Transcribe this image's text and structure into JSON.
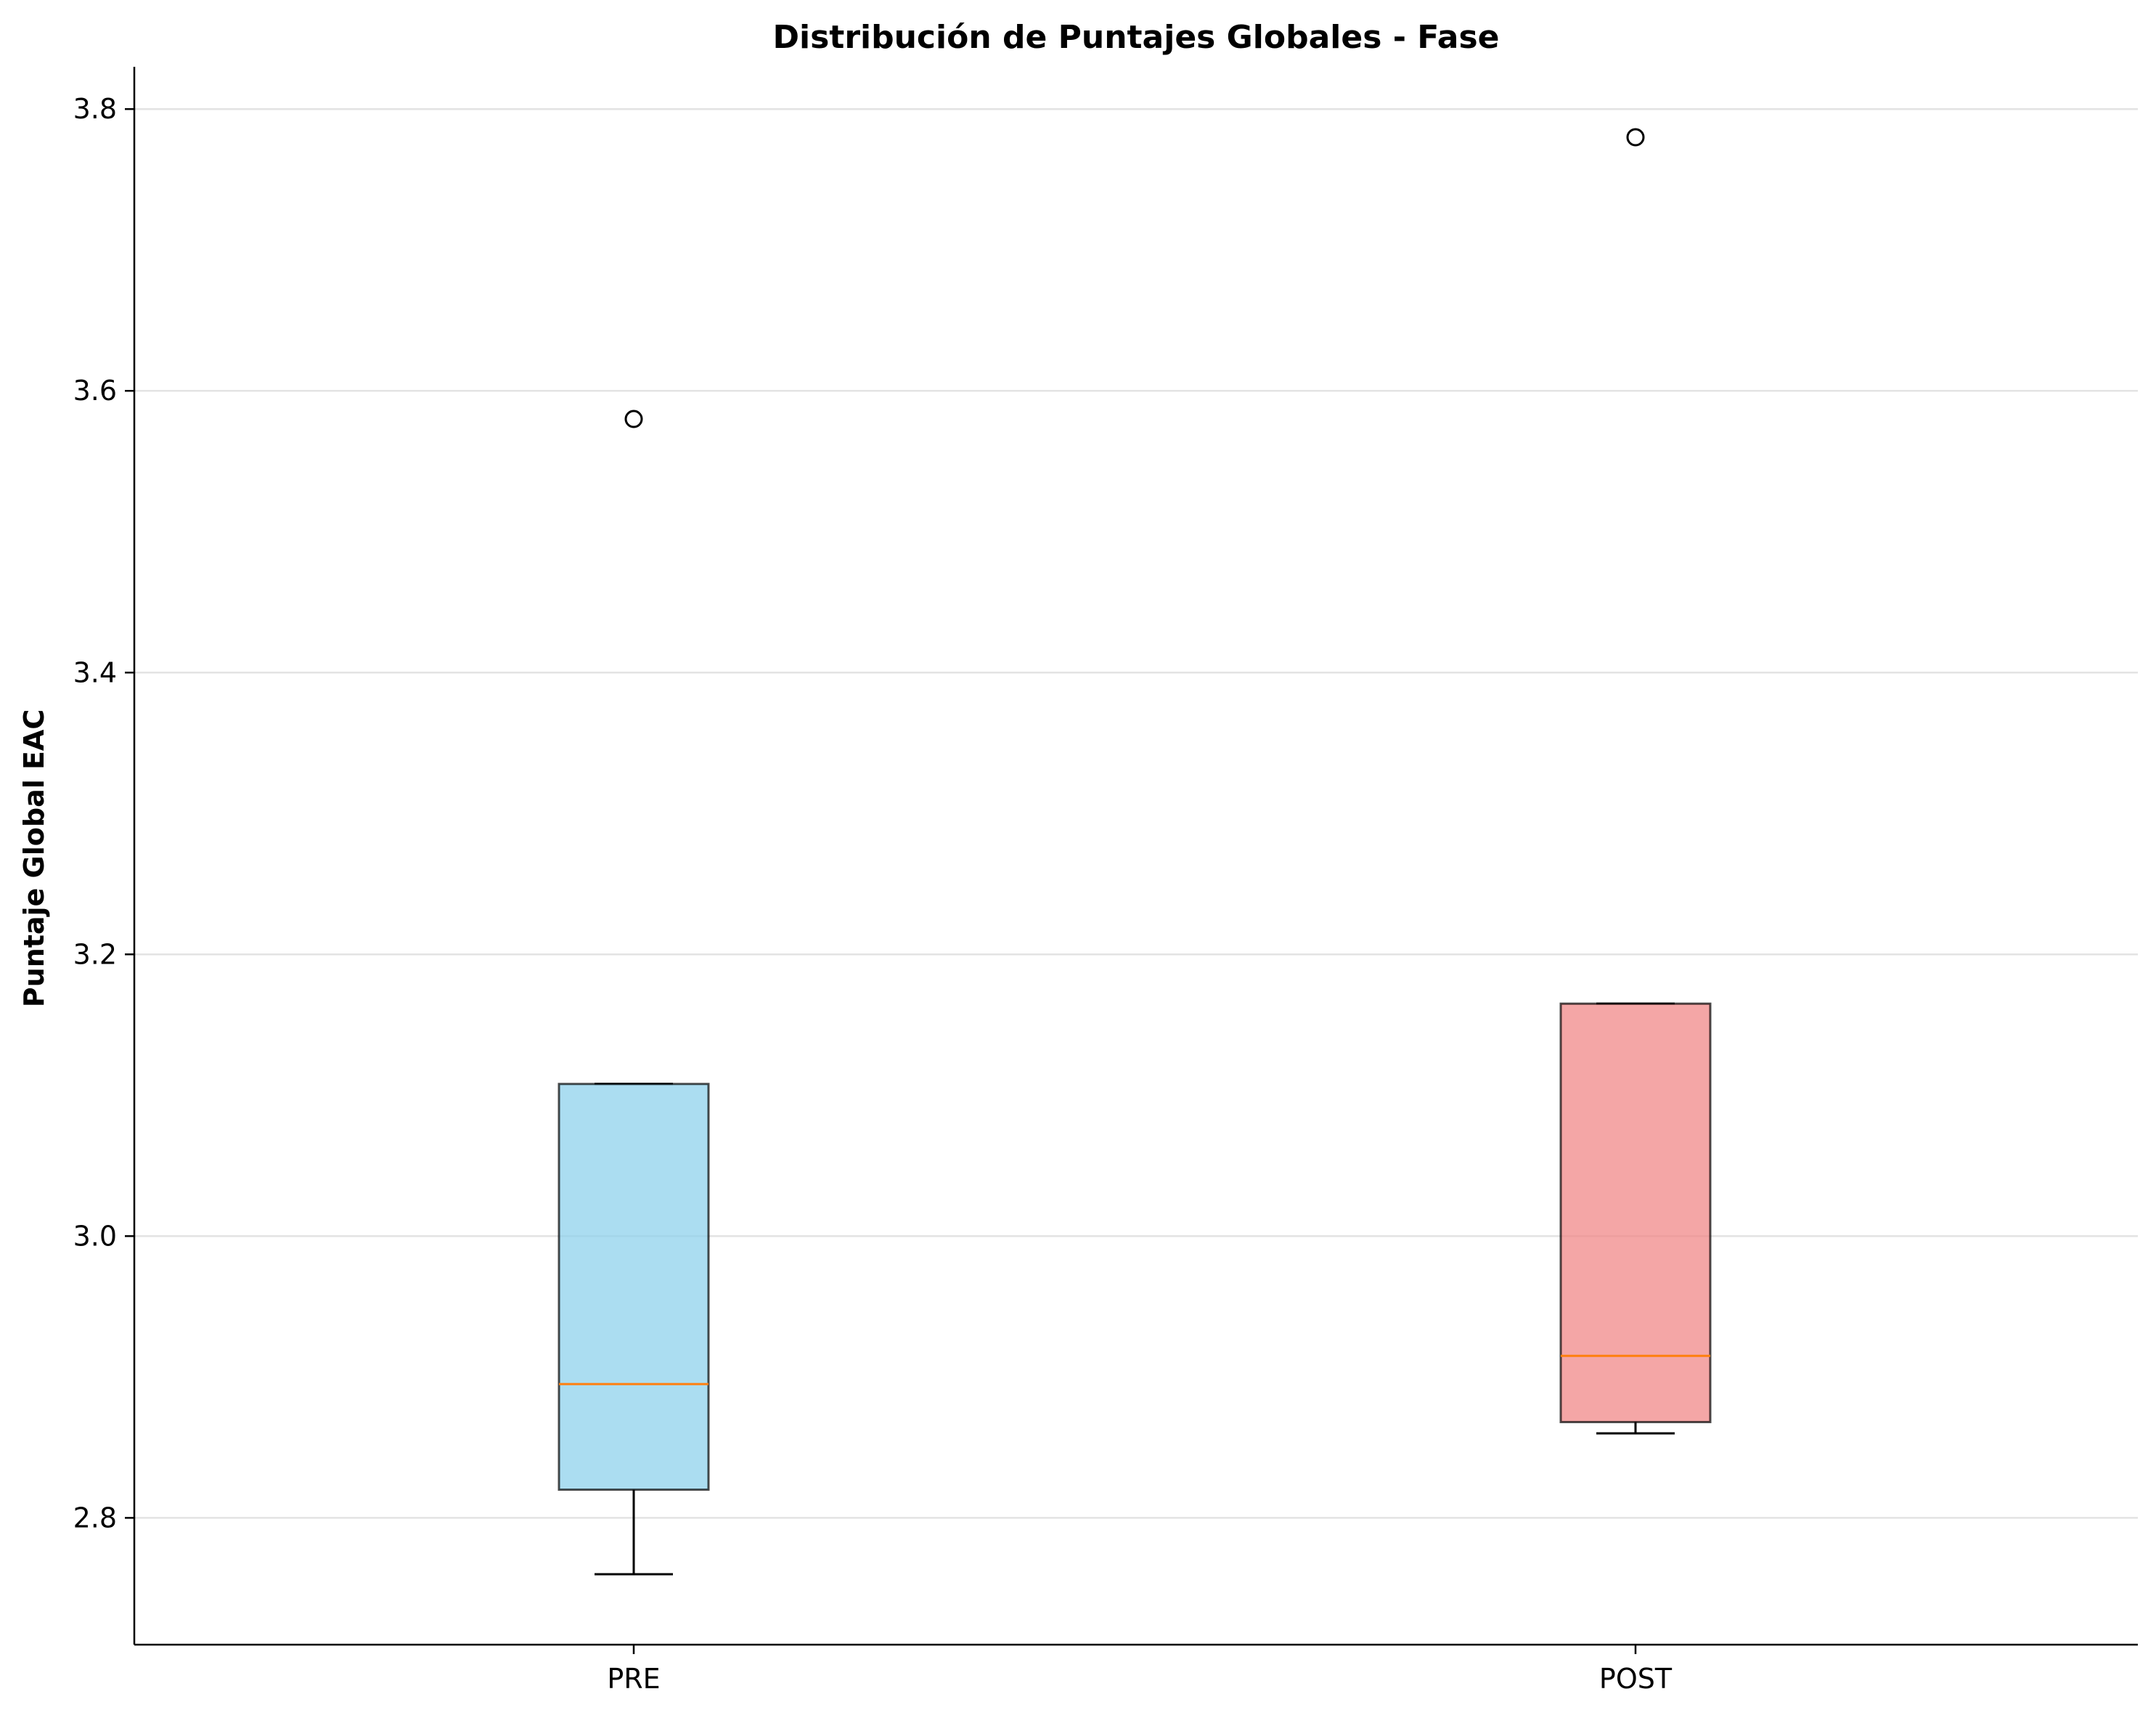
{
  "chart_data": {
    "type": "boxplot",
    "title": "Distribución de Puntajes Globales - Fase",
    "xlabel": "",
    "ylabel": "Puntaje Global EAC",
    "ylim": [
      2.71,
      3.83
    ],
    "yticks": [
      2.8,
      3.0,
      3.2,
      3.4,
      3.6,
      3.8
    ],
    "ytick_labels": [
      "2.8",
      "3.0",
      "3.2",
      "3.4",
      "3.6",
      "3.8"
    ],
    "grid": "horizontal",
    "categories": [
      "PRE",
      "POST"
    ],
    "boxes": [
      {
        "category": "PRE",
        "whisker_low": 2.76,
        "q1": 2.82,
        "median": 2.895,
        "q3": 3.108,
        "whisker_high": 3.108,
        "outliers": [
          3.58
        ],
        "color": "#87ceeb"
      },
      {
        "category": "POST",
        "whisker_low": 2.86,
        "q1": 2.868,
        "median": 2.915,
        "q3": 3.165,
        "whisker_high": 3.165,
        "outliers": [
          3.78
        ],
        "color": "#f08080"
      }
    ],
    "median_color": "#ff7f0e"
  }
}
